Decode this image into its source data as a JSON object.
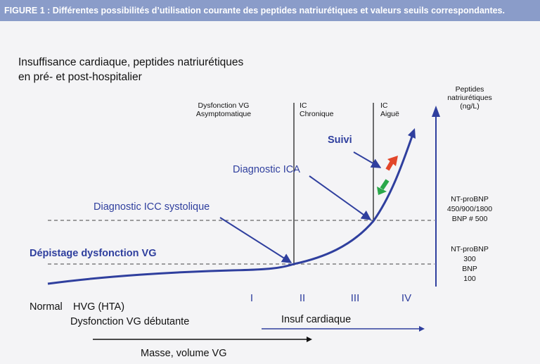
{
  "figure_caption": "FIGURE 1 : Différentes possibilités d’utilisation courante des peptides natriurétiques et valeurs seuils correspondantes.",
  "diagram": {
    "title_line1": "Insuffisance cardiaque, peptides natriurétiques",
    "title_line2": "en pré- et post-hospitalier",
    "axis_label_line1": "Peptides",
    "axis_label_line2": "natriurétiques",
    "axis_label_line3": "(ng/L)",
    "phase_dysfonction_line1": "Dysfonction VG",
    "phase_dysfonction_line2": "Asymptomatique",
    "phase_chronique_line1": "IC",
    "phase_chronique_line2": "Chronique",
    "phase_aigue_line1": "IC",
    "phase_aigue_line2": "Aiguë",
    "label_suivi": "Suivi",
    "label_diag_ica": "Diagnostic ICA",
    "label_diag_icc": "Diagnostic ICC systolique",
    "label_depistage": "Dépistage dysfonction VG",
    "threshold_high_line1": "NT-proBNP",
    "threshold_high_line2": "450/900/1800",
    "threshold_high_line3": "BNP # 500",
    "threshold_low_line1": "NT-proBNP",
    "threshold_low_line2": "300",
    "threshold_low_line3": "BNP",
    "threshold_low_line4": "100",
    "stage_1": "I",
    "stage_2": "II",
    "stage_3": "III",
    "stage_4": "IV",
    "bottom_normal": "Normal",
    "bottom_hvg": "HVG (HTA)",
    "bottom_dysf_debutante": "Dysfonction VG débutante",
    "bottom_insuf": "Insuf cardiaque",
    "bottom_masse": "Masse, volume VG",
    "colors": {
      "curve": "#2f3f9e",
      "arrow_up": "#e2462a",
      "arrow_down": "#2aa84a",
      "header_bg": "#8a9cc9"
    }
  }
}
